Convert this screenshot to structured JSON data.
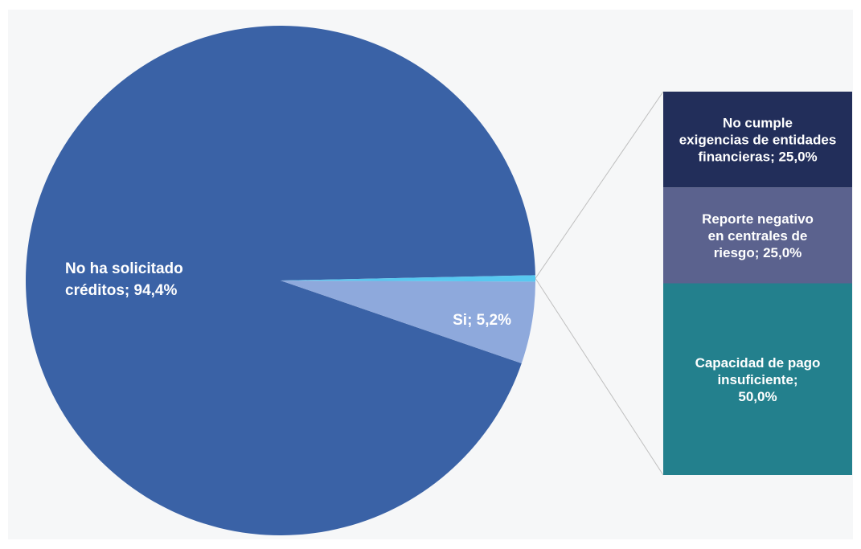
{
  "chart_data": {
    "type": "pie",
    "subtype": "bar-of-pie",
    "pie": {
      "slices": [
        {
          "label": "No ha solicitado créditos; 94,4%",
          "lines": [
            "No ha solicitado",
            "créditos; 94,4%"
          ],
          "value": 94.4,
          "color": "#3A62A6"
        },
        {
          "label": "Si; 5,2%",
          "lines": [
            "Si; 5,2%"
          ],
          "value": 5.2,
          "color": "#8EA9DC"
        },
        {
          "label": "",
          "lines": [],
          "value": 0.4,
          "color": "#58C8F0"
        }
      ]
    },
    "bar": {
      "segments": [
        {
          "label": "No cumple exigencias de entidades financieras; 25,0%",
          "lines": [
            "No cumple",
            "exigencias de entidades",
            "financieras; 25,0%"
          ],
          "value": 25.0,
          "color": "#222E5A"
        },
        {
          "label": "Reporte negativo en centrales de riesgo; 25,0%",
          "lines": [
            "Reporte negativo",
            "en centrales de",
            "riesgo; 25,0%"
          ],
          "value": 25.0,
          "color": "#5B628E"
        },
        {
          "label": "Capacidad de pago insuficiente; 50,0%",
          "lines": [
            "Capacidad de pago",
            "insuficiente;",
            "50,0%"
          ],
          "value": 50.0,
          "color": "#23808D"
        }
      ]
    },
    "connector_color": "#BFBFBF",
    "background": "#F6F7F8"
  }
}
